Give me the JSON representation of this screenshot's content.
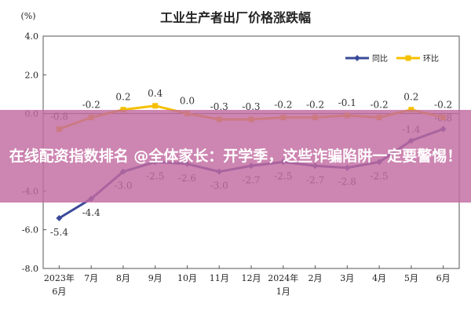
{
  "chart_data": {
    "type": "line",
    "title": "工业生产者出厂价格涨跌幅",
    "ylabel": "(%)",
    "ylim": [
      -8.0,
      4.0
    ],
    "yticks": [
      "4.0",
      "2.0",
      "0.0",
      "-2.0",
      "-4.0",
      "-6.0",
      "-8.0"
    ],
    "grid": false,
    "legend_position": "top-right",
    "categories": [
      [
        "2023年",
        "6月"
      ],
      [
        "7月"
      ],
      [
        "8月"
      ],
      [
        "9月"
      ],
      [
        "10月"
      ],
      [
        "11月"
      ],
      [
        "12月"
      ],
      [
        "2024年",
        "1月"
      ],
      [
        "2月"
      ],
      [
        "3月"
      ],
      [
        "4月"
      ],
      [
        "5月"
      ],
      [
        "6月"
      ]
    ],
    "series": [
      {
        "name": "同比",
        "color": "#3a4a9a",
        "values": [
          -5.4,
          -4.4,
          -3.0,
          -2.5,
          -2.6,
          -3.0,
          -2.7,
          -2.5,
          -2.7,
          -2.8,
          -2.5,
          -1.4,
          -0.8
        ],
        "labels": [
          "-5.4",
          "-4.4",
          "-3.0",
          "-2.5",
          "-2.6",
          "-3.0",
          "-2.7",
          "-2.5",
          "-2.7",
          "-2.8",
          "-2.5",
          "-1.4",
          "-0.8"
        ]
      },
      {
        "name": "环比",
        "color": "#f5c000",
        "values": [
          -0.8,
          -0.2,
          0.2,
          0.4,
          0.0,
          -0.3,
          -0.3,
          -0.2,
          -0.2,
          -0.1,
          -0.2,
          0.2,
          -0.2
        ],
        "labels": [
          "-0.8",
          "-0.2",
          "0.2",
          "0.4",
          "0.0",
          "-0.3",
          "-0.3",
          "-0.2",
          "-0.2",
          "-0.1",
          "-0.2",
          "0.2",
          "-0.2"
        ]
      }
    ]
  },
  "overlay": {
    "text": "在线配资指数排名 @全体家长：开学季，这些诈骗陷阱一定要警惕！",
    "color": "#c26aa0"
  }
}
